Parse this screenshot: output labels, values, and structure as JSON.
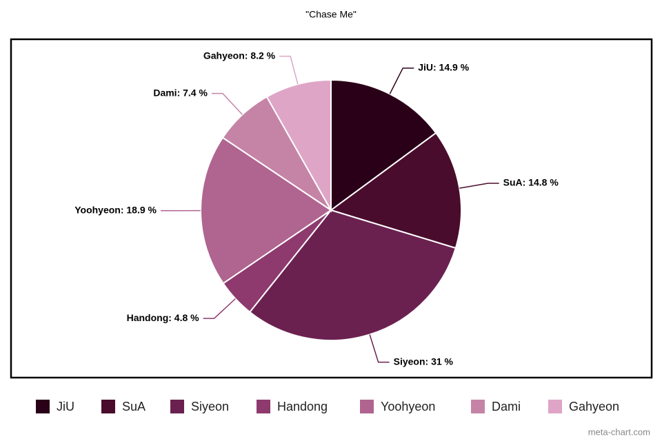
{
  "chart_data": {
    "type": "pie",
    "title": "\"Chase Me\"",
    "categories": [
      "JiU",
      "SuA",
      "Siyeon",
      "Handong",
      "Yoohyeon",
      "Dami",
      "Gahyeon"
    ],
    "values": [
      14.9,
      14.8,
      31,
      4.8,
      18.9,
      7.4,
      8.2
    ],
    "value_labels": [
      "JiU: 14.9 %",
      "SuA: 14.8 %",
      "Siyeon: 31 %",
      "Handong: 4.8 %",
      "Yoohyeon: 18.9 %",
      "Dami: 7.4 %",
      "Gahyeon: 8.2 %"
    ],
    "colors": [
      "#2a0018",
      "#4a0c2c",
      "#6b2150",
      "#8e3a6e",
      "#b06590",
      "#c584a6",
      "#dfa5c6"
    ],
    "legend": "bottom",
    "watermark": "meta-chart.com"
  }
}
